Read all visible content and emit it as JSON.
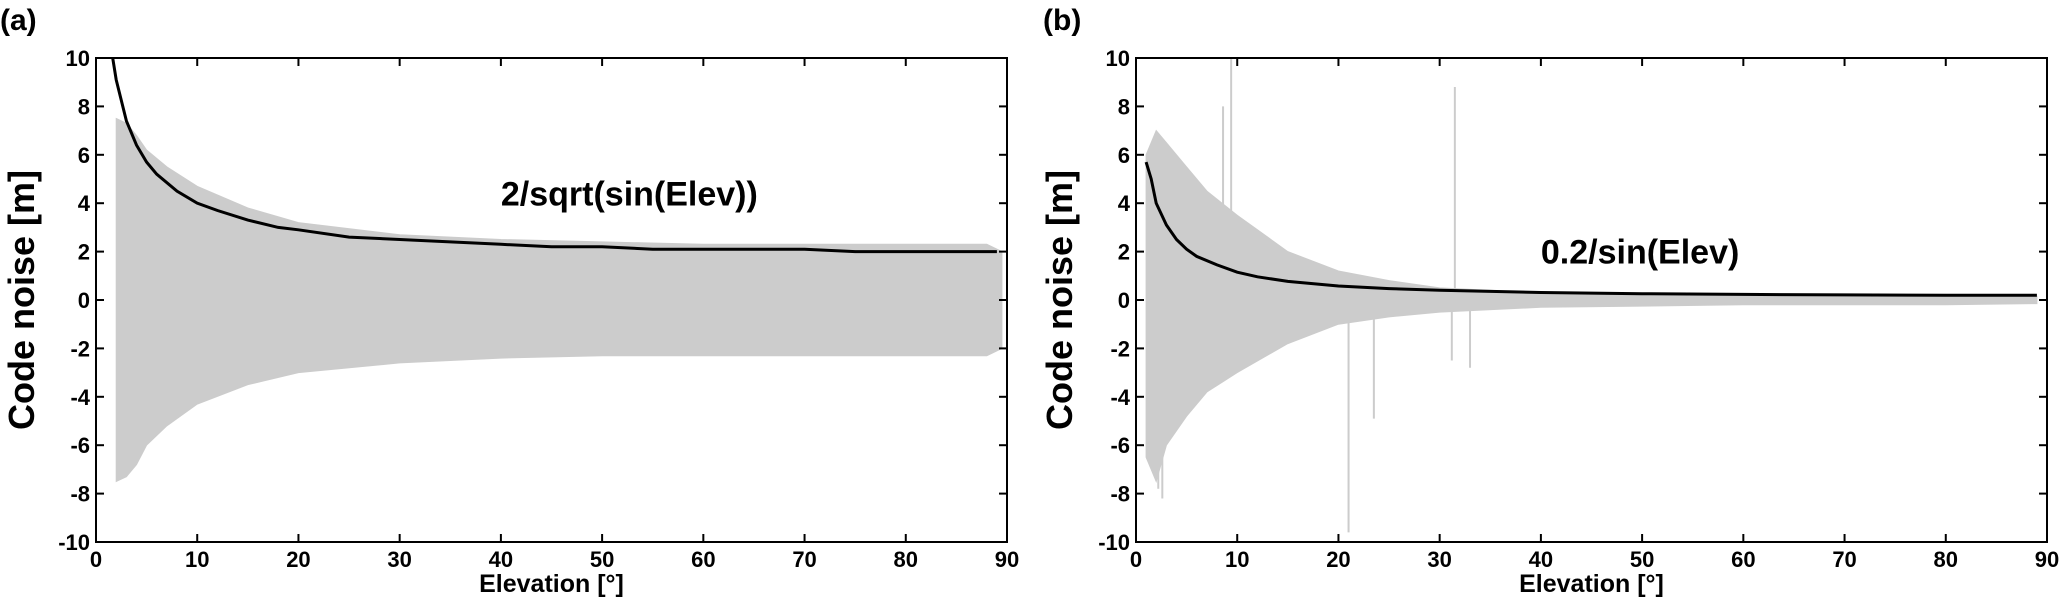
{
  "chart_data": [
    {
      "panel_label": "(a)",
      "type": "line",
      "xlabel": "Elevation [°]",
      "ylabel": "Code noise [m]",
      "xlim": [
        0,
        90
      ],
      "ylim": [
        -10,
        10
      ],
      "xticks": [
        0,
        10,
        20,
        30,
        40,
        50,
        60,
        70,
        80,
        90
      ],
      "yticks": [
        -10,
        -8,
        -6,
        -4,
        -2,
        0,
        2,
        4,
        6,
        8,
        10
      ],
      "grid": false,
      "annotation": {
        "text": "2/sqrt(sin(Elev))",
        "x": 40,
        "y": 3.9
      },
      "series": [
        {
          "kind": "noise-band",
          "color": "#cccccc",
          "x": [
            2,
            3,
            4,
            5,
            7,
            10,
            15,
            20,
            30,
            40,
            50,
            60,
            70,
            80,
            88,
            89.5
          ],
          "upper": [
            7.5,
            7.3,
            6.8,
            6.2,
            5.5,
            4.7,
            3.8,
            3.2,
            2.7,
            2.5,
            2.4,
            2.3,
            2.3,
            2.3,
            2.3,
            2.0
          ],
          "lower": [
            -7.5,
            -7.3,
            -6.8,
            -6.0,
            -5.2,
            -4.3,
            -3.5,
            -3.0,
            -2.6,
            -2.4,
            -2.3,
            -2.3,
            -2.3,
            -2.3,
            -2.3,
            -2.0
          ]
        },
        {
          "kind": "model-curve",
          "color": "#000000",
          "x": [
            1.65,
            2,
            3,
            4,
            5,
            6,
            8,
            10,
            12,
            15,
            18,
            20,
            25,
            30,
            35,
            40,
            45,
            50,
            55,
            60,
            65,
            70,
            75,
            80,
            85,
            89
          ],
          "y": [
            10,
            9.1,
            7.4,
            6.4,
            5.7,
            5.2,
            4.5,
            4.0,
            3.7,
            3.3,
            3.0,
            2.9,
            2.6,
            2.5,
            2.4,
            2.3,
            2.2,
            2.2,
            2.1,
            2.1,
            2.1,
            2.1,
            2.0,
            2.0,
            2.0,
            2.0
          ]
        }
      ]
    },
    {
      "panel_label": "(b)",
      "type": "line",
      "xlabel": "Elevation [°]",
      "ylabel": "Code noise [m]",
      "xlim": [
        0,
        90
      ],
      "ylim": [
        -10,
        10
      ],
      "xticks": [
        0,
        10,
        20,
        30,
        40,
        50,
        60,
        70,
        80,
        90
      ],
      "yticks": [
        -10,
        -8,
        -6,
        -4,
        -2,
        0,
        2,
        4,
        6,
        8,
        10
      ],
      "grid": false,
      "annotation": {
        "text": "0.2/sin(Elev)",
        "x": 40,
        "y": 1.5
      },
      "series": [
        {
          "kind": "noise-band",
          "color": "#cccccc",
          "x": [
            1,
            2,
            3,
            5,
            7,
            10,
            15,
            20,
            25,
            30,
            40,
            50,
            60,
            70,
            80,
            89
          ],
          "upper": [
            6.0,
            7.0,
            6.5,
            5.5,
            4.5,
            3.5,
            2.0,
            1.2,
            0.8,
            0.5,
            0.3,
            0.25,
            0.2,
            0.2,
            0.2,
            0.15
          ],
          "lower": [
            -6.5,
            -7.5,
            -6.0,
            -4.8,
            -3.8,
            -3.0,
            -1.8,
            -1.0,
            -0.7,
            -0.5,
            -0.3,
            -0.25,
            -0.2,
            -0.2,
            -0.2,
            -0.15
          ]
        },
        {
          "kind": "spikes",
          "color": "#cccccc",
          "segments": [
            [
              2.2,
              0,
              2.2,
              -7.8
            ],
            [
              2.6,
              0,
              2.6,
              -8.2
            ],
            [
              9.4,
              0,
              9.4,
              10
            ],
            [
              8.6,
              0,
              8.6,
              8.0
            ],
            [
              21,
              0,
              21,
              -9.6
            ],
            [
              23.5,
              0,
              23.5,
              -4.9
            ],
            [
              31.5,
              0,
              31.5,
              8.8
            ],
            [
              31.2,
              0,
              31.2,
              -2.5
            ],
            [
              33,
              0,
              33,
              -2.8
            ]
          ]
        },
        {
          "kind": "model-curve",
          "color": "#000000",
          "x": [
            1.0,
            1.5,
            2,
            3,
            4,
            5,
            6,
            8,
            10,
            12,
            15,
            20,
            25,
            30,
            40,
            50,
            60,
            70,
            80,
            89
          ],
          "y": [
            5.7,
            5.0,
            4.0,
            3.1,
            2.5,
            2.1,
            1.8,
            1.45,
            1.15,
            0.96,
            0.77,
            0.58,
            0.47,
            0.4,
            0.31,
            0.26,
            0.23,
            0.21,
            0.2,
            0.2
          ]
        }
      ]
    }
  ]
}
